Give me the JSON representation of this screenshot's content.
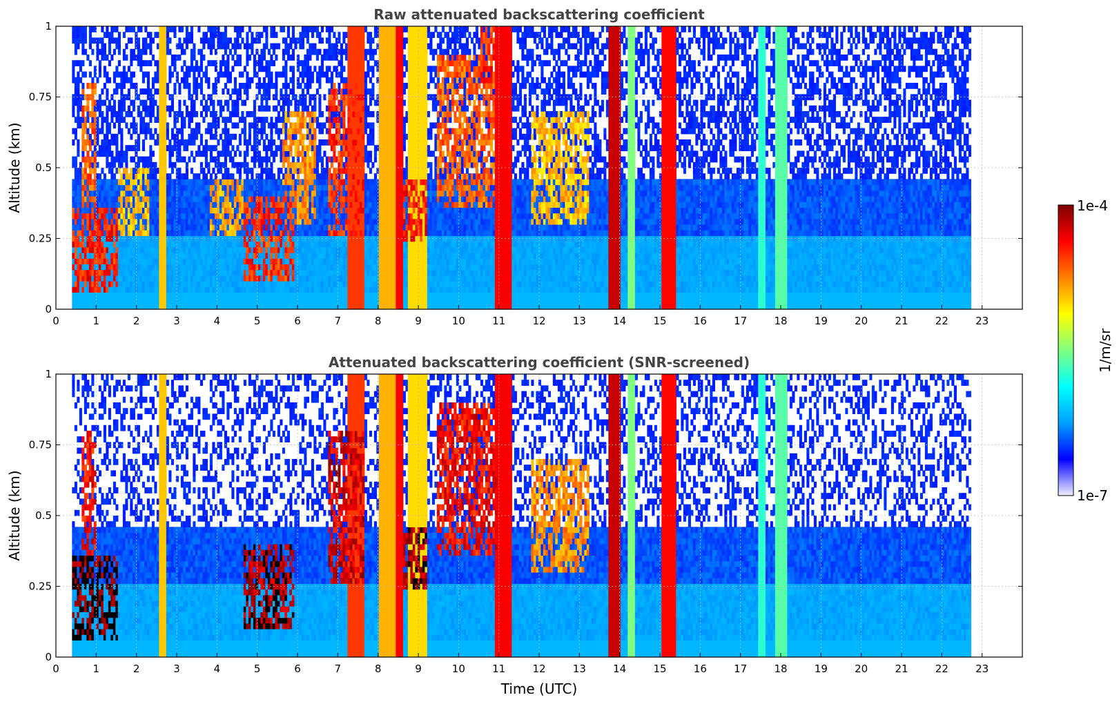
{
  "chart_data": [
    {
      "type": "heatmap",
      "title": "Raw attenuated backscattering coefficient",
      "xlabel": "",
      "ylabel": "Altitude (km)",
      "xlim": [
        0,
        24
      ],
      "ylim": [
        0,
        1
      ],
      "x_ticks": [
        "0",
        "1",
        "2",
        "3",
        "4",
        "5",
        "6",
        "7",
        "8",
        "9",
        "10",
        "11",
        "12",
        "13",
        "14",
        "15",
        "16",
        "17",
        "18",
        "19",
        "20",
        "21",
        "22",
        "23"
      ],
      "y_ticks": [
        "0",
        "0.25",
        "0.5",
        "0.75",
        "1"
      ],
      "grid": true,
      "data_end_hour": 22.7,
      "value_scale": "log",
      "color_range": [
        "1e-7",
        "1e-4"
      ],
      "cloud_features": [
        {
          "start": 0.0,
          "end": 1.5,
          "base_km": 0.05,
          "top_km": 0.35,
          "level": 0.93
        },
        {
          "start": 0.6,
          "end": 1.0,
          "base_km": 0.35,
          "top_km": 0.8,
          "level": 0.85
        },
        {
          "start": 1.5,
          "end": 2.3,
          "base_km": 0.25,
          "top_km": 0.5,
          "level": 0.75
        },
        {
          "start": 3.8,
          "end": 4.6,
          "base_km": 0.25,
          "top_km": 0.45,
          "level": 0.78
        },
        {
          "start": 4.6,
          "end": 5.9,
          "base_km": 0.1,
          "top_km": 0.4,
          "level": 0.9
        },
        {
          "start": 5.6,
          "end": 6.4,
          "base_km": 0.3,
          "top_km": 0.7,
          "level": 0.8
        },
        {
          "start": 6.7,
          "end": 7.6,
          "base_km": 0.25,
          "top_km": 0.8,
          "level": 0.9
        },
        {
          "start": 8.6,
          "end": 9.2,
          "base_km": 0.22,
          "top_km": 0.45,
          "level": 0.93
        },
        {
          "start": 9.4,
          "end": 10.9,
          "base_km": 0.35,
          "top_km": 0.9,
          "level": 0.85
        },
        {
          "start": 10.5,
          "end": 10.9,
          "base_km": 0.8,
          "top_km": 1.0,
          "level": 0.9
        },
        {
          "start": 11.8,
          "end": 13.2,
          "base_km": 0.3,
          "top_km": 0.7,
          "level": 0.75
        }
      ],
      "precip_columns": [
        {
          "start": 2.55,
          "end": 2.72,
          "level": 0.68
        },
        {
          "start": 7.2,
          "end": 7.6,
          "level": 0.82
        },
        {
          "start": 8.0,
          "end": 8.4,
          "level": 0.7
        },
        {
          "start": 8.4,
          "end": 8.6,
          "level": 0.88
        },
        {
          "start": 8.7,
          "end": 9.2,
          "level": 0.66
        },
        {
          "start": 10.9,
          "end": 11.3,
          "level": 0.88
        },
        {
          "start": 13.7,
          "end": 14.0,
          "level": 0.93
        },
        {
          "start": 14.2,
          "end": 14.35,
          "level": 0.5
        },
        {
          "start": 15.0,
          "end": 15.4,
          "level": 0.87
        },
        {
          "start": 17.4,
          "end": 17.6,
          "level": 0.42
        },
        {
          "start": 17.85,
          "end": 18.15,
          "level": 0.46
        }
      ]
    },
    {
      "type": "heatmap",
      "title": "Attenuated backscattering coefficient (SNR-screened)",
      "xlabel": "Time (UTC)",
      "ylabel": "Altitude (km)",
      "xlim": [
        0,
        24
      ],
      "ylim": [
        0,
        1
      ],
      "x_ticks": [
        "0",
        "1",
        "2",
        "3",
        "4",
        "5",
        "6",
        "7",
        "8",
        "9",
        "10",
        "11",
        "12",
        "13",
        "14",
        "15",
        "16",
        "17",
        "18",
        "19",
        "20",
        "21",
        "22",
        "23"
      ],
      "y_ticks": [
        "0",
        "0.25",
        "0.5",
        "0.75",
        "1"
      ],
      "grid": true,
      "data_end_hour": 22.7,
      "value_scale": "log",
      "color_range": [
        "1e-7",
        "1e-4"
      ],
      "saturated_color": "#000000",
      "cloud_features": [
        {
          "start": 0.0,
          "end": 1.5,
          "base_km": 0.05,
          "top_km": 0.35,
          "level": 1.1
        },
        {
          "start": 0.6,
          "end": 1.0,
          "base_km": 0.35,
          "top_km": 0.8,
          "level": 0.95
        },
        {
          "start": 4.6,
          "end": 5.9,
          "base_km": 0.1,
          "top_km": 0.4,
          "level": 1.05
        },
        {
          "start": 6.7,
          "end": 7.6,
          "base_km": 0.25,
          "top_km": 0.8,
          "level": 1.0
        },
        {
          "start": 8.6,
          "end": 9.2,
          "base_km": 0.22,
          "top_km": 0.45,
          "level": 1.05
        },
        {
          "start": 9.4,
          "end": 10.9,
          "base_km": 0.35,
          "top_km": 0.9,
          "level": 0.95
        },
        {
          "start": 11.8,
          "end": 13.2,
          "base_km": 0.3,
          "top_km": 0.7,
          "level": 0.8
        }
      ],
      "precip_columns": [
        {
          "start": 2.55,
          "end": 2.72,
          "level": 0.68
        },
        {
          "start": 7.2,
          "end": 7.6,
          "level": 0.82
        },
        {
          "start": 8.0,
          "end": 8.4,
          "level": 0.7
        },
        {
          "start": 8.4,
          "end": 8.6,
          "level": 0.88
        },
        {
          "start": 8.7,
          "end": 9.2,
          "level": 0.66
        },
        {
          "start": 10.9,
          "end": 11.3,
          "level": 0.88
        },
        {
          "start": 13.7,
          "end": 14.0,
          "level": 0.93
        },
        {
          "start": 14.2,
          "end": 14.35,
          "level": 0.5
        },
        {
          "start": 15.0,
          "end": 15.4,
          "level": 0.87
        },
        {
          "start": 17.4,
          "end": 17.6,
          "level": 0.42
        },
        {
          "start": 17.85,
          "end": 18.15,
          "level": 0.46
        }
      ]
    }
  ],
  "colorbar": {
    "label": "1/m/sr",
    "max_label": "1e-4",
    "min_label": "1e-7",
    "colormap": [
      "#f0f0ff",
      "#0000ff",
      "#00a0ff",
      "#00ffff",
      "#80ff80",
      "#ffff00",
      "#ff8000",
      "#ff0000",
      "#800000"
    ]
  }
}
